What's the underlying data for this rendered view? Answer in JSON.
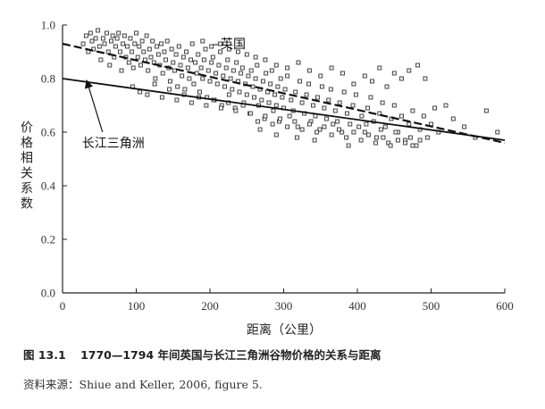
{
  "caption": {
    "figure_number": "图 13.1",
    "title": "1770—1794 年间英国与长江三角洲谷物价格的关系与距离"
  },
  "source": "资料来源：Shiue and Keller, 2006, figure 5.",
  "chart_data": {
    "type": "scatter",
    "title": "",
    "xlabel": "距离（公里）",
    "ylabel": "价格相关系数",
    "xlim": [
      0,
      600
    ],
    "ylim": [
      0.0,
      1.0
    ],
    "x_ticks": [
      "0",
      "100",
      "200",
      "300",
      "400",
      "500",
      "600"
    ],
    "y_ticks": [
      "0.0",
      "0.2",
      "0.4",
      "0.6",
      "0.8",
      "1.0"
    ],
    "grid": false,
    "marker": "small open square",
    "annotations": [
      {
        "text": "英国",
        "x": 200,
        "y": 0.92
      },
      {
        "text": "长江三角洲",
        "x": 30,
        "y": 0.56
      }
    ],
    "trend_lines": [
      {
        "name": "英国",
        "style": "dashed",
        "x": [
          0,
          600
        ],
        "y": [
          0.93,
          0.56
        ]
      },
      {
        "name": "长江三角洲",
        "style": "solid",
        "x": [
          0,
          600
        ],
        "y": [
          0.8,
          0.57
        ]
      }
    ],
    "series": [
      {
        "name": "英国",
        "points": [
          [
            28,
            0.93
          ],
          [
            32,
            0.96
          ],
          [
            35,
            0.9
          ],
          [
            38,
            0.97
          ],
          [
            40,
            0.94
          ],
          [
            42,
            0.91
          ],
          [
            45,
            0.95
          ],
          [
            48,
            0.98
          ],
          [
            50,
            0.92
          ],
          [
            52,
            0.87
          ],
          [
            55,
            0.95
          ],
          [
            57,
            0.93
          ],
          [
            60,
            0.97
          ],
          [
            62,
            0.9
          ],
          [
            64,
            0.85
          ],
          [
            66,
            0.94
          ],
          [
            68,
            0.96
          ],
          [
            70,
            0.88
          ],
          [
            72,
            0.92
          ],
          [
            74,
            0.95
          ],
          [
            76,
            0.97
          ],
          [
            78,
            0.9
          ],
          [
            80,
            0.83
          ],
          [
            82,
            0.93
          ],
          [
            84,
            0.96
          ],
          [
            86,
            0.88
          ],
          [
            88,
            0.92
          ],
          [
            90,
            0.86
          ],
          [
            92,
            0.95
          ],
          [
            94,
            0.9
          ],
          [
            96,
            0.84
          ],
          [
            98,
            0.93
          ],
          [
            100,
            0.97
          ],
          [
            102,
            0.88
          ],
          [
            104,
            0.92
          ],
          [
            106,
            0.85
          ],
          [
            108,
            0.94
          ],
          [
            110,
            0.9
          ],
          [
            112,
            0.87
          ],
          [
            114,
            0.96
          ],
          [
            116,
            0.83
          ],
          [
            118,
            0.91
          ],
          [
            120,
            0.88
          ],
          [
            122,
            0.94
          ],
          [
            124,
            0.86
          ],
          [
            126,
            0.8
          ],
          [
            128,
            0.92
          ],
          [
            130,
            0.89
          ],
          [
            132,
            0.85
          ],
          [
            134,
            0.93
          ],
          [
            136,
            0.82
          ],
          [
            138,
            0.9
          ],
          [
            140,
            0.87
          ],
          [
            142,
            0.94
          ],
          [
            144,
            0.84
          ],
          [
            146,
            0.79
          ],
          [
            148,
            0.91
          ],
          [
            150,
            0.86
          ],
          [
            152,
            0.83
          ],
          [
            154,
            0.89
          ],
          [
            156,
            0.77
          ],
          [
            158,
            0.92
          ],
          [
            160,
            0.85
          ],
          [
            162,
            0.81
          ],
          [
            164,
            0.88
          ],
          [
            166,
            0.76
          ],
          [
            168,
            0.9
          ],
          [
            170,
            0.84
          ],
          [
            172,
            0.8
          ],
          [
            174,
            0.87
          ],
          [
            176,
            0.93
          ],
          [
            178,
            0.78
          ],
          [
            180,
            0.86
          ],
          [
            182,
            0.82
          ],
          [
            184,
            0.89
          ],
          [
            186,
            0.75
          ],
          [
            188,
            0.84
          ],
          [
            190,
            0.8
          ],
          [
            192,
            0.87
          ],
          [
            194,
            0.91
          ],
          [
            196,
            0.73
          ],
          [
            198,
            0.83
          ],
          [
            200,
            0.79
          ],
          [
            202,
            0.86
          ],
          [
            204,
            0.88
          ],
          [
            206,
            0.72
          ],
          [
            208,
            0.82
          ],
          [
            210,
            0.78
          ],
          [
            212,
            0.85
          ],
          [
            214,
            0.9
          ],
          [
            216,
            0.7
          ],
          [
            218,
            0.81
          ],
          [
            220,
            0.77
          ],
          [
            222,
            0.84
          ],
          [
            224,
            0.87
          ],
          [
            226,
            0.74
          ],
          [
            228,
            0.8
          ],
          [
            230,
            0.76
          ],
          [
            232,
            0.83
          ],
          [
            234,
            0.69
          ],
          [
            236,
            0.86
          ],
          [
            238,
            0.79
          ],
          [
            240,
            0.75
          ],
          [
            242,
            0.82
          ],
          [
            244,
            0.84
          ],
          [
            246,
            0.71
          ],
          [
            248,
            0.78
          ],
          [
            250,
            0.74
          ],
          [
            252,
            0.81
          ],
          [
            254,
            0.67
          ],
          [
            256,
            0.83
          ],
          [
            258,
            0.77
          ],
          [
            260,
            0.73
          ],
          [
            262,
            0.8
          ],
          [
            264,
            0.85
          ],
          [
            266,
            0.7
          ],
          [
            268,
            0.76
          ],
          [
            270,
            0.72
          ],
          [
            272,
            0.79
          ],
          [
            274,
            0.65
          ],
          [
            276,
            0.82
          ],
          [
            278,
            0.75
          ],
          [
            280,
            0.71
          ],
          [
            282,
            0.78
          ],
          [
            284,
            0.83
          ],
          [
            286,
            0.68
          ],
          [
            288,
            0.74
          ],
          [
            290,
            0.7
          ],
          [
            292,
            0.77
          ],
          [
            294,
            0.64
          ],
          [
            296,
            0.8
          ],
          [
            298,
            0.73
          ],
          [
            300,
            0.69
          ],
          [
            302,
            0.76
          ],
          [
            305,
            0.81
          ],
          [
            308,
            0.66
          ],
          [
            310,
            0.72
          ],
          [
            313,
            0.68
          ],
          [
            316,
            0.75
          ],
          [
            319,
            0.62
          ],
          [
            322,
            0.79
          ],
          [
            325,
            0.71
          ],
          [
            328,
            0.67
          ],
          [
            331,
            0.74
          ],
          [
            334,
            0.78
          ],
          [
            337,
            0.64
          ],
          [
            340,
            0.7
          ],
          [
            343,
            0.66
          ],
          [
            346,
            0.73
          ],
          [
            349,
            0.61
          ],
          [
            352,
            0.77
          ],
          [
            355,
            0.69
          ],
          [
            358,
            0.65
          ],
          [
            361,
            0.72
          ],
          [
            364,
            0.76
          ],
          [
            367,
            0.63
          ],
          [
            370,
            0.68
          ],
          [
            373,
            0.64
          ],
          [
            376,
            0.71
          ],
          [
            379,
            0.6
          ],
          [
            382,
            0.75
          ],
          [
            386,
            0.67
          ],
          [
            390,
            0.63
          ],
          [
            394,
            0.7
          ],
          [
            398,
            0.74
          ],
          [
            402,
            0.62
          ],
          [
            406,
            0.66
          ],
          [
            410,
            0.6
          ],
          [
            414,
            0.69
          ],
          [
            418,
            0.73
          ],
          [
            422,
            0.64
          ],
          [
            426,
            0.58
          ],
          [
            430,
            0.67
          ],
          [
            434,
            0.71
          ],
          [
            438,
            0.62
          ],
          [
            442,
            0.56
          ],
          [
            446,
            0.65
          ],
          [
            450,
            0.7
          ],
          [
            455,
            0.6
          ],
          [
            460,
            0.66
          ],
          [
            465,
            0.57
          ],
          [
            470,
            0.63
          ],
          [
            475,
            0.68
          ],
          [
            480,
            0.55
          ],
          [
            485,
            0.61
          ],
          [
            490,
            0.66
          ],
          [
            495,
            0.58
          ],
          [
            500,
            0.63
          ],
          [
            505,
            0.69
          ],
          [
            510,
            0.6
          ],
          [
            410,
            0.81
          ],
          [
            420,
            0.79
          ],
          [
            430,
            0.84
          ],
          [
            440,
            0.77
          ],
          [
            450,
            0.82
          ],
          [
            460,
            0.8
          ],
          [
            470,
            0.83
          ],
          [
            482,
            0.85
          ],
          [
            492,
            0.8
          ],
          [
            520,
            0.7
          ],
          [
            530,
            0.65
          ],
          [
            545,
            0.62
          ],
          [
            575,
            0.68
          ],
          [
            590,
            0.6
          ],
          [
            380,
            0.82
          ],
          [
            395,
            0.78
          ],
          [
            365,
            0.84
          ],
          [
            350,
            0.81
          ],
          [
            335,
            0.83
          ],
          [
            320,
            0.86
          ],
          [
            305,
            0.84
          ],
          [
            290,
            0.85
          ],
          [
            275,
            0.87
          ],
          [
            262,
            0.88
          ],
          [
            250,
            0.89
          ],
          [
            238,
            0.9
          ],
          [
            226,
            0.91
          ],
          [
            214,
            0.93
          ],
          [
            202,
            0.92
          ],
          [
            190,
            0.94
          ]
        ]
      },
      {
        "name": "长江三角洲",
        "points": [
          [
            95,
            0.77
          ],
          [
            105,
            0.75
          ],
          [
            115,
            0.74
          ],
          [
            125,
            0.78
          ],
          [
            135,
            0.73
          ],
          [
            145,
            0.76
          ],
          [
            155,
            0.72
          ],
          [
            165,
            0.74
          ],
          [
            175,
            0.71
          ],
          [
            185,
            0.73
          ],
          [
            195,
            0.7
          ],
          [
            205,
            0.72
          ],
          [
            215,
            0.69
          ],
          [
            225,
            0.71
          ],
          [
            235,
            0.68
          ],
          [
            245,
            0.7
          ],
          [
            255,
            0.67
          ],
          [
            265,
            0.64
          ],
          [
            275,
            0.66
          ],
          [
            285,
            0.63
          ],
          [
            295,
            0.65
          ],
          [
            305,
            0.62
          ],
          [
            315,
            0.64
          ],
          [
            325,
            0.61
          ],
          [
            335,
            0.63
          ],
          [
            345,
            0.6
          ],
          [
            355,
            0.62
          ],
          [
            365,
            0.59
          ],
          [
            375,
            0.61
          ],
          [
            385,
            0.58
          ],
          [
            395,
            0.6
          ],
          [
            405,
            0.57
          ],
          [
            415,
            0.59
          ],
          [
            425,
            0.56
          ],
          [
            435,
            0.58
          ],
          [
            445,
            0.55
          ],
          [
            455,
            0.57
          ],
          [
            465,
            0.56
          ],
          [
            475,
            0.55
          ],
          [
            485,
            0.57
          ],
          [
            268,
            0.61
          ],
          [
            290,
            0.59
          ],
          [
            318,
            0.58
          ],
          [
            342,
            0.57
          ],
          [
            388,
            0.55
          ],
          [
            412,
            0.63
          ],
          [
            432,
            0.61
          ],
          [
            452,
            0.6
          ],
          [
            472,
            0.58
          ],
          [
            560,
            0.58
          ]
        ]
      }
    ]
  }
}
